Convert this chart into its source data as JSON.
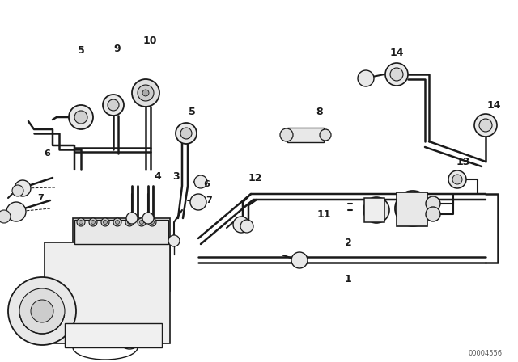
{
  "bg_color": "#ffffff",
  "line_color": "#1a1a1a",
  "watermark": "00004556",
  "fig_w": 6.4,
  "fig_h": 4.48,
  "dpi": 100
}
